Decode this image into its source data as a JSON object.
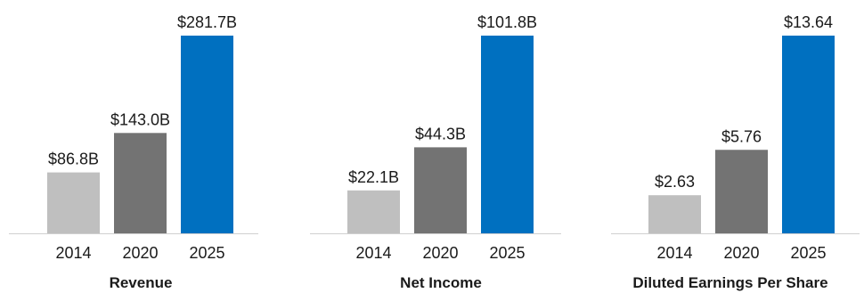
{
  "chart_data": [
    {
      "type": "bar",
      "title": "Revenue",
      "categories": [
        "2014",
        "2020",
        "2025"
      ],
      "values": [
        86.8,
        143.0,
        281.7
      ],
      "value_labels": [
        "$86.8B",
        "$143.0B",
        "$281.7B"
      ],
      "colors": [
        "#bfbfbf",
        "#737373",
        "#0070c0"
      ],
      "ylim": [
        0,
        281.7
      ],
      "grid": false
    },
    {
      "type": "bar",
      "title": "Net Income",
      "categories": [
        "2014",
        "2020",
        "2025"
      ],
      "values": [
        22.1,
        44.3,
        101.8
      ],
      "value_labels": [
        "$22.1B",
        "$44.3B",
        "$101.8B"
      ],
      "colors": [
        "#bfbfbf",
        "#737373",
        "#0070c0"
      ],
      "ylim": [
        0,
        101.8
      ],
      "grid": false
    },
    {
      "type": "bar",
      "title": "Diluted Earnings Per Share",
      "categories": [
        "2014",
        "2020",
        "2025"
      ],
      "values": [
        2.63,
        5.76,
        13.64
      ],
      "value_labels": [
        "$2.63",
        "$5.76",
        "$13.64"
      ],
      "colors": [
        "#bfbfbf",
        "#737373",
        "#0070c0"
      ],
      "ylim": [
        0,
        13.64
      ],
      "grid": false
    }
  ]
}
